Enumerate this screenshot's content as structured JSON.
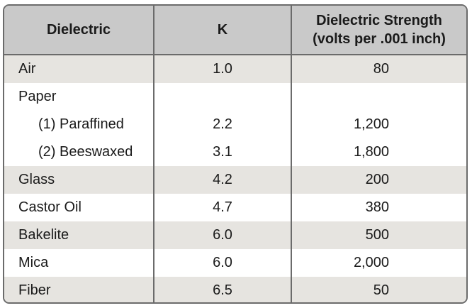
{
  "headers": {
    "dielectric": "Dielectric",
    "k": "K",
    "strength_line1": "Dielectric Strength",
    "strength_line2": "(volts per .001 inch)"
  },
  "rows": [
    {
      "name": "Air",
      "k": "1.0",
      "strength": "80"
    },
    {
      "name": "Paper",
      "k": "",
      "strength": ""
    },
    {
      "name": "(1) Paraffined",
      "k": "2.2",
      "strength": "1,200"
    },
    {
      "name": "(2) Beeswaxed",
      "k": "3.1",
      "strength": "1,800"
    },
    {
      "name": "Glass",
      "k": "4.2",
      "strength": "200"
    },
    {
      "name": "Castor Oil",
      "k": "4.7",
      "strength": "380"
    },
    {
      "name": "Bakelite",
      "k": "6.0",
      "strength": "500"
    },
    {
      "name": "Mica",
      "k": "6.0",
      "strength": "2,000"
    },
    {
      "name": "Fiber",
      "k": "6.5",
      "strength": "50"
    }
  ],
  "colors": {
    "header_bg": "#c9c9c9",
    "shaded_row_bg": "#e6e4e0",
    "border": "#6b6b6b"
  }
}
